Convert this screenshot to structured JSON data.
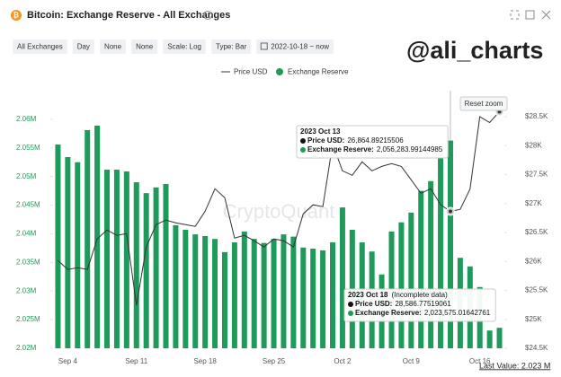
{
  "header": {
    "title": "Bitcoin: Exchange Reserve - All Exchanges",
    "filters": [
      "All Exchanges",
      "Day",
      "None",
      "None",
      "Scale: Log",
      "Type: Bar",
      "2022-10-18 ~ now"
    ]
  },
  "watermark": "@ali_charts",
  "chart_data": {
    "type": "combo",
    "categories": [
      null,
      "Sep 4",
      null,
      null,
      null,
      null,
      null,
      null,
      "Sep 11",
      null,
      null,
      null,
      null,
      null,
      null,
      "Sep 18",
      null,
      null,
      null,
      null,
      null,
      null,
      "Sep 25",
      null,
      null,
      null,
      null,
      null,
      null,
      "Oct 2",
      null,
      null,
      null,
      null,
      null,
      null,
      "Oct 9",
      null,
      null,
      null,
      null,
      null,
      null,
      "Oct 16",
      null,
      null
    ],
    "series": [
      {
        "name": "Price USD",
        "type": "line",
        "axis": "y2",
        "color": "#333333",
        "values": [
          26017,
          25862,
          25893,
          25862,
          26389,
          26543,
          26450,
          26481,
          25243,
          26249,
          26636,
          26714,
          26667,
          26636,
          26605,
          26868,
          27255,
          27100,
          26404,
          26450,
          26358,
          26249,
          26389,
          26358,
          26249,
          26822,
          26977,
          26946,
          28030,
          27565,
          27488,
          27720,
          27565,
          27642,
          27689,
          27642,
          27410,
          27178,
          27255,
          26977,
          26864.89215506,
          26900,
          27250,
          28500,
          28400,
          28586.77519061
        ]
      },
      {
        "name": "Exchange Reserve",
        "type": "bar",
        "color": "#1e9b5a",
        "values": [
          2055600,
          2053400,
          2052500,
          2058100,
          2058900,
          2051200,
          2051200,
          2050900,
          2049000,
          2047100,
          2048100,
          2048700,
          2041500,
          2040700,
          2039900,
          2039600,
          2039100,
          2036800,
          2038500,
          2040400,
          2039100,
          2038400,
          2039100,
          2039900,
          2039500,
          2037600,
          2037400,
          2037100,
          2038500,
          2044600,
          2040700,
          2038500,
          2036900,
          2032900,
          2040400,
          2042000,
          2043700,
          2047500,
          2049200,
          2054500,
          2056283.99144985,
          2035800,
          2034300,
          2030700,
          2023100,
          2023575.01642761
        ]
      }
    ],
    "ylim": [
      2020000,
      2065000
    ],
    "yticks": [
      {
        "value": 2020000,
        "label": "2.02M"
      },
      {
        "value": 2025000,
        "label": "2.025M"
      },
      {
        "value": 2030000,
        "label": "2.03M"
      },
      {
        "value": 2035000,
        "label": "2.035M"
      },
      {
        "value": 2040000,
        "label": "2.04M"
      },
      {
        "value": 2045000,
        "label": "2.045M"
      },
      {
        "value": 2050000,
        "label": "2.05M"
      },
      {
        "value": 2055000,
        "label": "2.055M"
      },
      {
        "value": 2060000,
        "label": "2.06M"
      }
    ],
    "y2lim": [
      24500,
      28950
    ],
    "y2ticks": [
      {
        "value": 24500,
        "label": "$24.5K"
      },
      {
        "value": 25000,
        "label": "$25K"
      },
      {
        "value": 25500,
        "label": "$25.5K"
      },
      {
        "value": 26000,
        "label": "$26K"
      },
      {
        "value": 26500,
        "label": "$26.5K"
      },
      {
        "value": 27000,
        "label": "$27K"
      },
      {
        "value": 27500,
        "label": "$27.5K"
      },
      {
        "value": 28000,
        "label": "$28K"
      },
      {
        "value": 28500,
        "label": "$28.5K"
      }
    ],
    "reset_zoom": "Reset zoom",
    "watermark": "CryptoQuant",
    "last_value": "Last Value: 2.023 M",
    "tooltips": [
      {
        "title": "2023 Oct 13",
        "items": [
          {
            "name": "Price USD:",
            "value": "26,864.89215506",
            "color": "#111111"
          },
          {
            "name": "Exchange Reserve:",
            "value": "2,056,283.99144985",
            "color": "#1e9b5a"
          }
        ]
      },
      {
        "title": "2023 Oct 18",
        "note": "(Incomplete data)",
        "items": [
          {
            "name": "Price USD:",
            "value": "28,586.77519061",
            "color": "#111111"
          },
          {
            "name": "Exchange Reserve:",
            "value": "2,023,575.01642761",
            "color": "#1e9b5a"
          }
        ]
      }
    ]
  }
}
